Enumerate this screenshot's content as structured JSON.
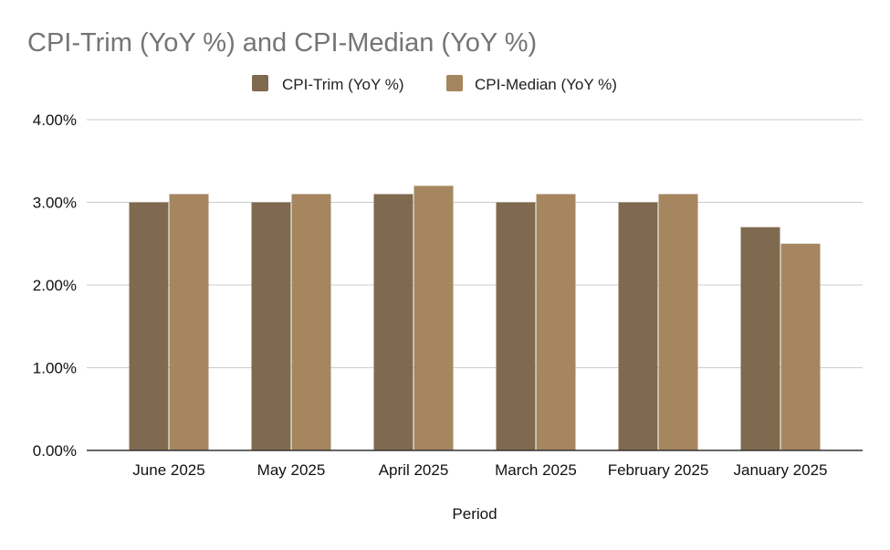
{
  "chart_data": {
    "type": "bar",
    "title": "CPI-Trim (YoY %) and CPI-Median (YoY %)",
    "xlabel": "Period",
    "ylabel": "",
    "categories": [
      "June 2025",
      "May 2025",
      "April 2025",
      "March 2025",
      "February 2025",
      "January 2025"
    ],
    "series": [
      {
        "name": "CPI-Trim (YoY %)",
        "color": "#7f6a4f",
        "values": [
          3.0,
          3.0,
          3.1,
          3.0,
          3.0,
          2.7
        ]
      },
      {
        "name": "CPI-Median (YoY %)",
        "color": "#a6865f",
        "values": [
          3.1,
          3.1,
          3.2,
          3.1,
          3.1,
          2.5
        ]
      }
    ],
    "ylim": [
      0,
      4
    ],
    "yticks": [
      "0.00%",
      "1.00%",
      "2.00%",
      "3.00%",
      "4.00%"
    ],
    "grid": true,
    "legend": "top-center"
  }
}
